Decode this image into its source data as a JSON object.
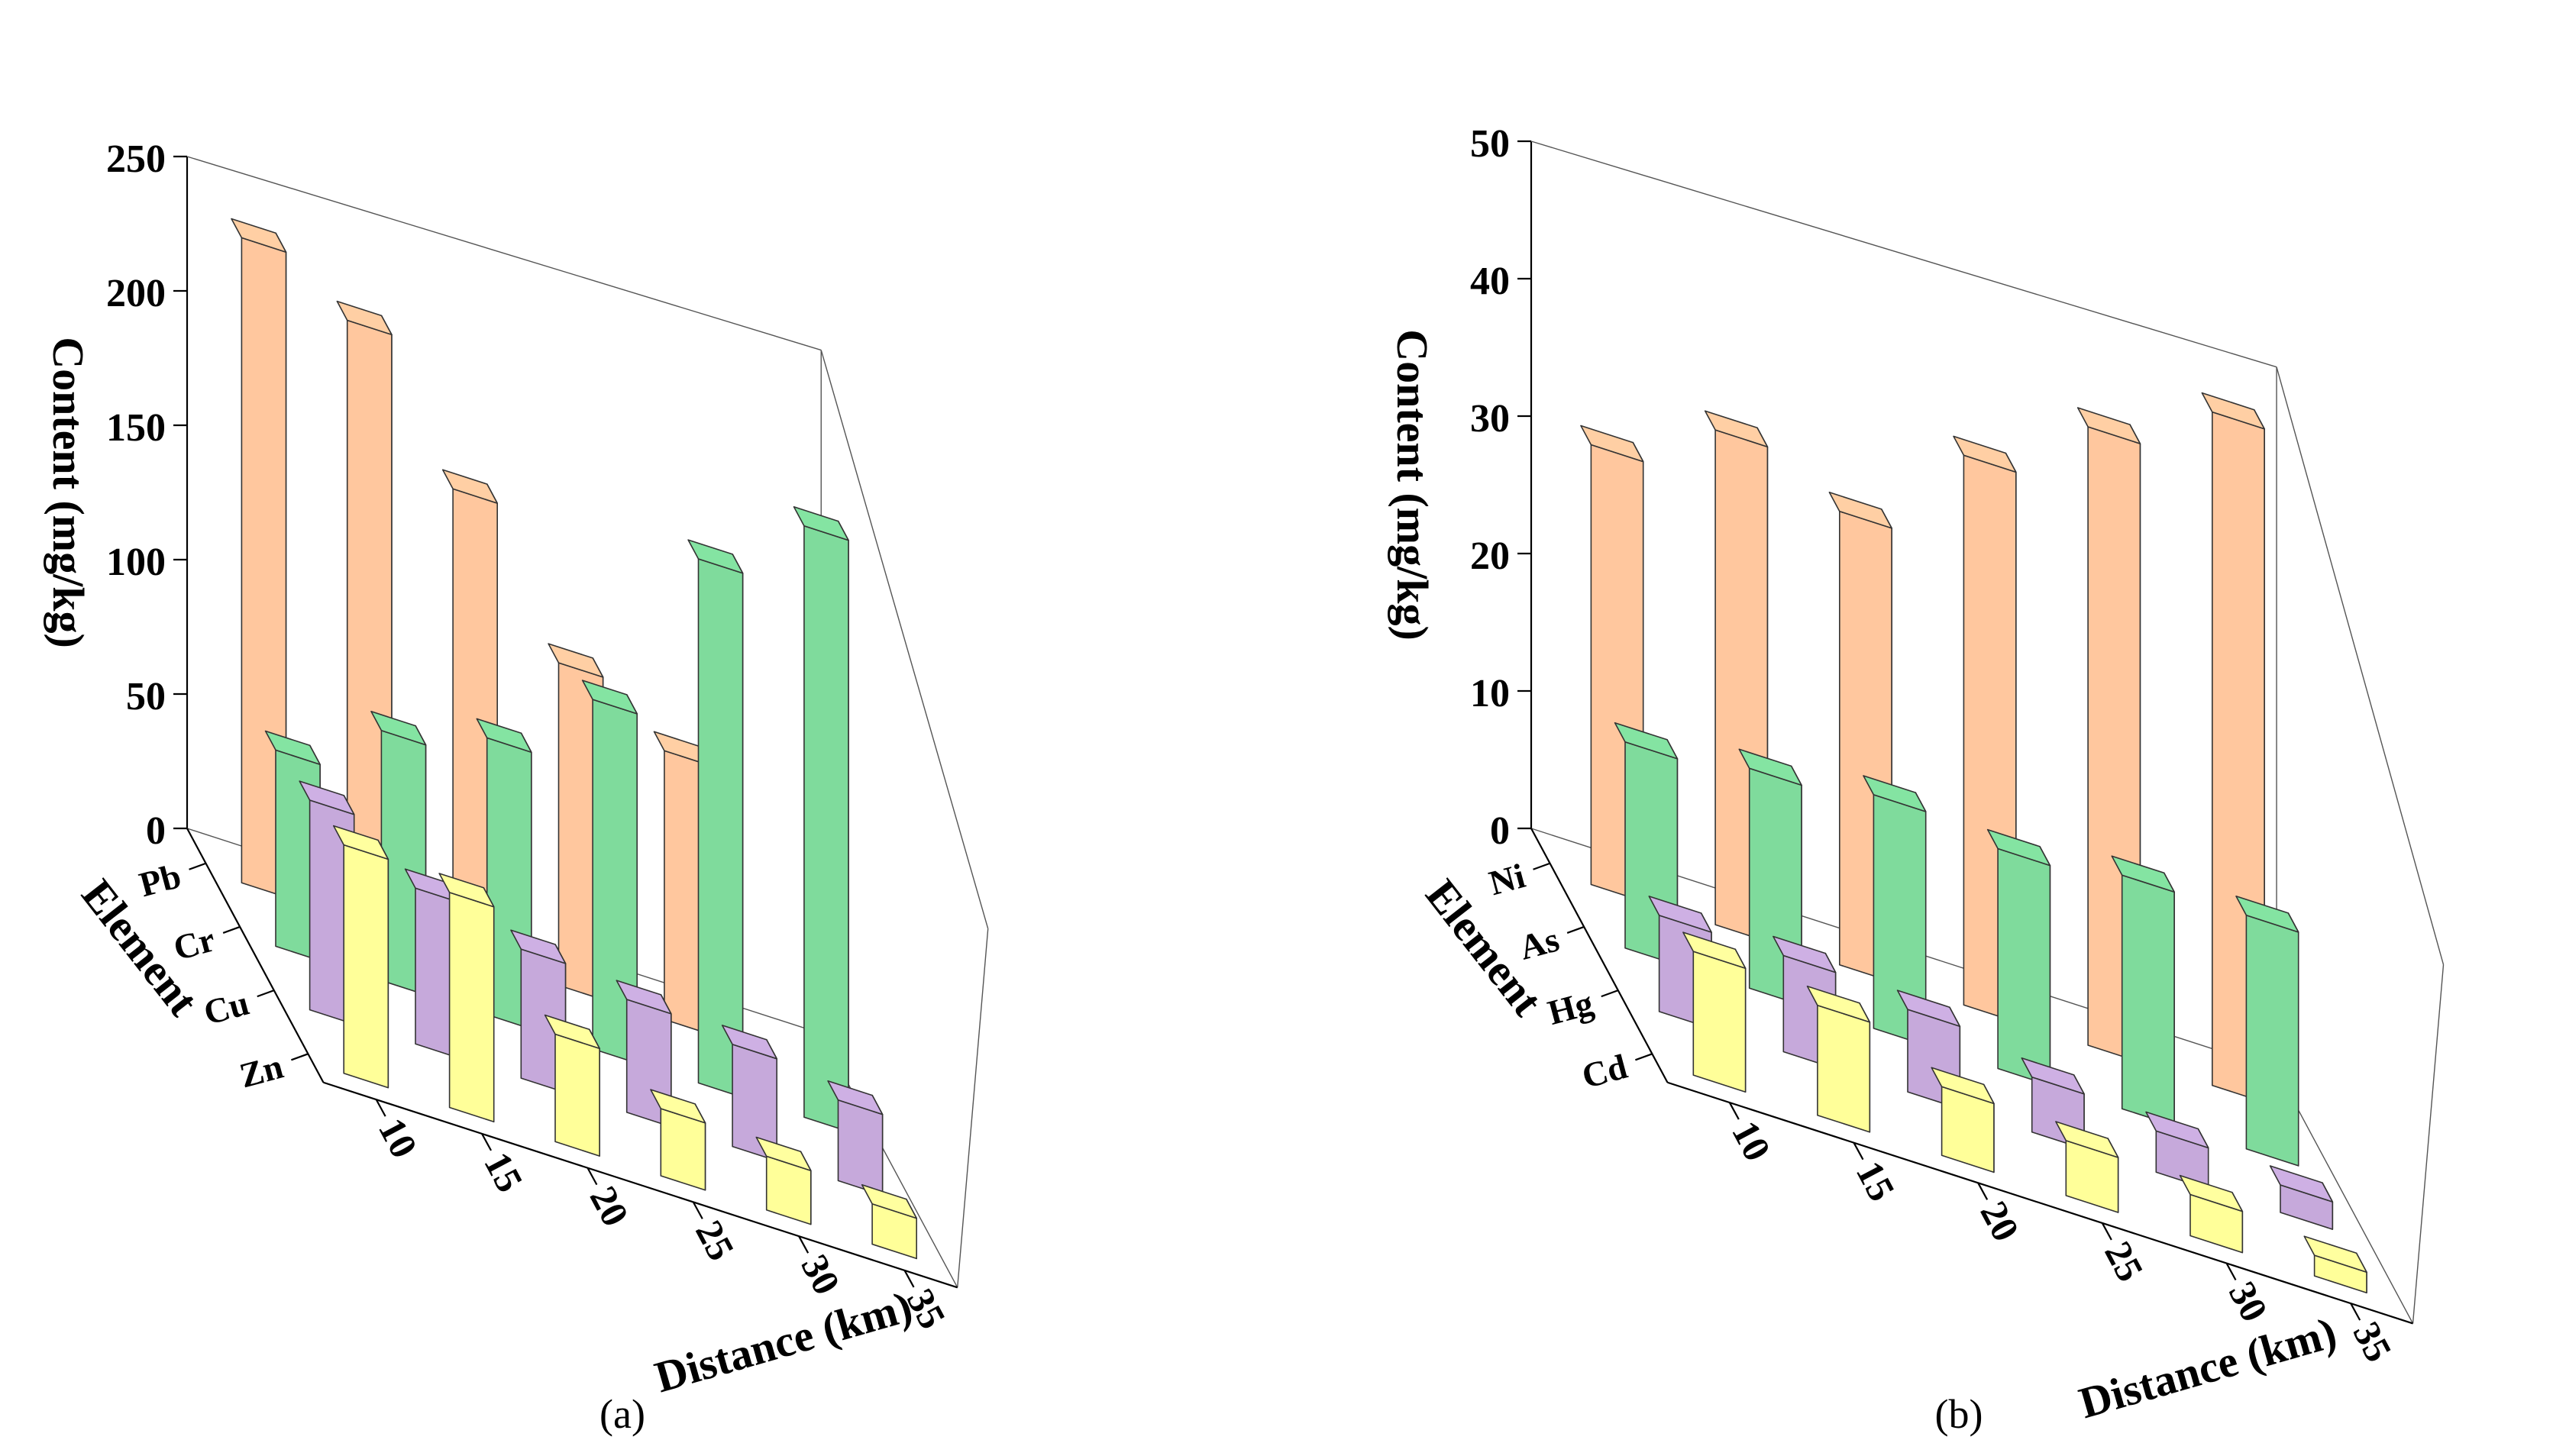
{
  "chart_data": [
    {
      "type": "bar3d",
      "panel_label": "(a)",
      "zlabel": "Content (mg/kg)",
      "ylabel": "Element",
      "xlabel": "Distance (km)",
      "zlim": [
        0,
        250
      ],
      "zticks": [
        "0",
        "50",
        "100",
        "150",
        "200",
        "250"
      ],
      "x": [
        "10",
        "15",
        "20",
        "25",
        "30",
        "35"
      ],
      "series": [
        {
          "name": "Pb",
          "color": "#FFC79E",
          "values": [
            240,
            222,
            172,
            120,
            100,
            0
          ]
        },
        {
          "name": "Cr",
          "color": "#7FDB9C",
          "values": [
            73,
            93,
            103,
            130,
            195,
            220
          ]
        },
        {
          "name": "Cu",
          "color": "#C6A9DB",
          "values": [
            78,
            58,
            48,
            42,
            38,
            30
          ]
        },
        {
          "name": "Zn",
          "color": "#FFFF99",
          "values": [
            85,
            80,
            40,
            25,
            20,
            15
          ]
        }
      ]
    },
    {
      "type": "bar3d",
      "panel_label": "(b)",
      "zlabel": "Content (mg/kg)",
      "ylabel": "Element",
      "xlabel": "Distance (km)",
      "zlim": [
        0,
        50
      ],
      "zticks": [
        "0",
        "10",
        "20",
        "30",
        "40",
        "50"
      ],
      "x": [
        "10",
        "15",
        "20",
        "25",
        "30",
        "35"
      ],
      "series": [
        {
          "name": "Ni",
          "color": "#FFC79E",
          "values": [
            32,
            36,
            33,
            40,
            45,
            49
          ]
        },
        {
          "name": "As",
          "color": "#7FDB9C",
          "values": [
            15,
            16,
            17,
            16,
            17,
            17
          ]
        },
        {
          "name": "Hg",
          "color": "#C6A9DB",
          "values": [
            7,
            7,
            6,
            4,
            3,
            2
          ]
        },
        {
          "name": "Cd",
          "color": "#FFFF99",
          "values": [
            9,
            8,
            5,
            4,
            3,
            1.5
          ]
        }
      ]
    }
  ]
}
